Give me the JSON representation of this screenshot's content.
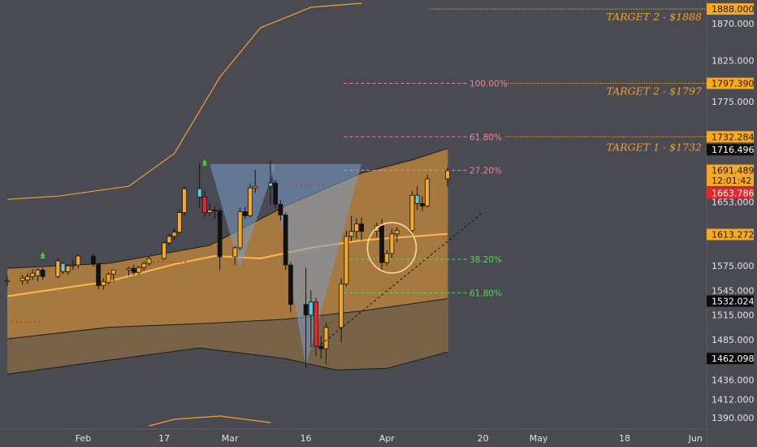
{
  "chart_data": {
    "type": "candlestick",
    "colors": {
      "background": "#4a4a52",
      "up": "#f7a825",
      "down": "#111111",
      "band": "#f0a030",
      "cyan": "#5dc8e0",
      "red": "#e8252b",
      "green": "#3fcf3f",
      "fib_upper": "#e7879a",
      "fib_lower": "#58d858",
      "triangle": "#7a9cc8"
    },
    "ylim": [
      1380,
      1895
    ],
    "date_axis": {
      "start": "2020-01-17",
      "ticks": [
        {
          "date": "2020-02-01",
          "label": "Feb"
        },
        {
          "date": "2020-02-17",
          "label": "17"
        },
        {
          "date": "2020-03-01",
          "label": "Mar"
        },
        {
          "date": "2020-03-16",
          "label": "16"
        },
        {
          "date": "2020-04-01",
          "label": "Apr"
        },
        {
          "date": "2020-04-20",
          "label": "20"
        },
        {
          "date": "2020-05-01",
          "label": "May"
        },
        {
          "date": "2020-05-18",
          "label": "18"
        },
        {
          "date": "2020-06-01",
          "label": "Jun"
        }
      ]
    },
    "price_ticks": [
      {
        "value": 1870,
        "label": "1870.000"
      },
      {
        "value": 1825,
        "label": "1825.000"
      },
      {
        "value": 1775,
        "label": "1775.000"
      },
      {
        "value": 1653,
        "label": "1653.000"
      },
      {
        "value": 1575,
        "label": "1575.000"
      },
      {
        "value": 1545,
        "label": "1545.000"
      },
      {
        "value": 1515,
        "label": "1515.000"
      },
      {
        "value": 1485,
        "label": "1485.000"
      },
      {
        "value": 1436,
        "label": "1436.000"
      },
      {
        "value": 1412,
        "label": "1412.000"
      },
      {
        "value": 1390,
        "label": "1390.000"
      }
    ],
    "price_labels": [
      {
        "value": 1888.0,
        "label": "1888.000",
        "style": "orange"
      },
      {
        "value": 1797.39,
        "label": "1797.390",
        "style": "orange"
      },
      {
        "value": 1732.284,
        "label": "1732.284",
        "style": "orange"
      },
      {
        "value": 1716.496,
        "label": "1716.496",
        "style": "black"
      },
      {
        "value": 1691.489,
        "label": "1691.489",
        "style": "orange"
      },
      {
        "value": 1679.0,
        "label": "12:01:42",
        "style": "orange"
      },
      {
        "value": 1663.786,
        "label": "1663.786",
        "style": "red"
      },
      {
        "value": 1613.272,
        "label": "1613.272",
        "style": "orange"
      },
      {
        "value": 1532.024,
        "label": "1532.024",
        "style": "black"
      },
      {
        "value": 1462.098,
        "label": "1462.098",
        "style": "black"
      }
    ],
    "targets": [
      {
        "value": 1888,
        "label": "TARGET 2 - $1888"
      },
      {
        "value": 1797.39,
        "label": "TARGET 2 - $1797"
      },
      {
        "value": 1732.284,
        "label": "TARGET 1 - $1732"
      }
    ],
    "fib_levels": [
      {
        "value": 1797.39,
        "label": "100.00%",
        "group": "upper"
      },
      {
        "value": 1732.284,
        "label": "61.80%",
        "group": "upper"
      },
      {
        "value": 1691.489,
        "label": "27.20%",
        "group": "upper"
      },
      {
        "value": 1583,
        "label": "38.20%",
        "group": "lower"
      },
      {
        "value": 1542,
        "label": "61.80%",
        "group": "lower"
      }
    ],
    "candles": [
      {
        "date": "2020-01-17",
        "open": 1556,
        "high": 1563,
        "low": 1550,
        "close": 1557
      },
      {
        "date": "2020-01-20",
        "open": 1557,
        "high": 1564,
        "low": 1552,
        "close": 1560
      },
      {
        "date": "2020-01-21",
        "open": 1558,
        "high": 1566,
        "low": 1553,
        "close": 1562
      },
      {
        "date": "2020-01-22",
        "open": 1562,
        "high": 1571,
        "low": 1558,
        "close": 1566
      },
      {
        "date": "2020-01-23",
        "open": 1563,
        "high": 1572,
        "low": 1556,
        "close": 1570
      },
      {
        "date": "2020-01-24",
        "open": 1570,
        "high": 1573,
        "low": 1558,
        "close": 1562
      },
      {
        "date": "2020-01-27",
        "open": 1562,
        "high": 1584,
        "low": 1560,
        "close": 1581
      },
      {
        "date": "2020-01-28",
        "open": 1578,
        "high": 1580,
        "low": 1565,
        "close": 1568
      },
      {
        "date": "2020-01-29",
        "open": 1568,
        "high": 1577,
        "low": 1564,
        "close": 1575
      },
      {
        "date": "2020-01-30",
        "open": 1575,
        "high": 1582,
        "low": 1570,
        "close": 1576
      },
      {
        "date": "2020-01-31",
        "open": 1576,
        "high": 1589,
        "low": 1572,
        "close": 1587
      },
      {
        "date": "2020-02-03",
        "open": 1587,
        "high": 1590,
        "low": 1574,
        "close": 1577
      },
      {
        "date": "2020-02-04",
        "open": 1577,
        "high": 1579,
        "low": 1546,
        "close": 1551
      },
      {
        "date": "2020-02-05",
        "open": 1551,
        "high": 1560,
        "low": 1546,
        "close": 1556
      },
      {
        "date": "2020-02-06",
        "open": 1555,
        "high": 1567,
        "low": 1552,
        "close": 1565
      },
      {
        "date": "2020-02-07",
        "open": 1565,
        "high": 1570,
        "low": 1556,
        "close": 1570
      },
      {
        "date": "2020-02-10",
        "open": 1570,
        "high": 1574,
        "low": 1563,
        "close": 1572
      },
      {
        "date": "2020-02-11",
        "open": 1572,
        "high": 1576,
        "low": 1564,
        "close": 1567
      },
      {
        "date": "2020-02-12",
        "open": 1567,
        "high": 1575,
        "low": 1564,
        "close": 1573
      },
      {
        "date": "2020-02-13",
        "open": 1573,
        "high": 1581,
        "low": 1569,
        "close": 1578
      },
      {
        "date": "2020-02-14",
        "open": 1578,
        "high": 1587,
        "low": 1575,
        "close": 1584
      },
      {
        "date": "2020-02-17",
        "open": 1584,
        "high": 1605,
        "low": 1582,
        "close": 1603
      },
      {
        "date": "2020-02-18",
        "open": 1603,
        "high": 1614,
        "low": 1600,
        "close": 1611
      },
      {
        "date": "2020-02-19",
        "open": 1611,
        "high": 1620,
        "low": 1606,
        "close": 1616
      },
      {
        "date": "2020-02-20",
        "open": 1616,
        "high": 1644,
        "low": 1614,
        "close": 1640
      },
      {
        "date": "2020-02-21",
        "open": 1640,
        "high": 1672,
        "low": 1636,
        "close": 1669
      },
      {
        "date": "2020-02-24",
        "open": 1669,
        "high": 1700,
        "low": 1645,
        "close": 1659
      },
      {
        "date": "2020-02-25",
        "open": 1659,
        "high": 1666,
        "low": 1634,
        "close": 1640
      },
      {
        "date": "2020-02-26",
        "open": 1640,
        "high": 1652,
        "low": 1636,
        "close": 1643
      },
      {
        "date": "2020-02-27",
        "open": 1643,
        "high": 1648,
        "low": 1632,
        "close": 1642
      },
      {
        "date": "2020-02-28",
        "open": 1642,
        "high": 1646,
        "low": 1570,
        "close": 1586
      },
      {
        "date": "2020-03-02",
        "open": 1586,
        "high": 1599,
        "low": 1576,
        "close": 1597
      },
      {
        "date": "2020-03-03",
        "open": 1597,
        "high": 1646,
        "low": 1594,
        "close": 1641
      },
      {
        "date": "2020-03-04",
        "open": 1641,
        "high": 1647,
        "low": 1632,
        "close": 1636
      },
      {
        "date": "2020-03-05",
        "open": 1636,
        "high": 1675,
        "low": 1634,
        "close": 1670
      },
      {
        "date": "2020-03-06",
        "open": 1670,
        "high": 1692,
        "low": 1664,
        "close": 1672
      },
      {
        "date": "2020-03-09",
        "open": 1672,
        "high": 1703,
        "low": 1650,
        "close": 1676
      },
      {
        "date": "2020-03-10",
        "open": 1676,
        "high": 1680,
        "low": 1645,
        "close": 1650
      },
      {
        "date": "2020-03-11",
        "open": 1650,
        "high": 1655,
        "low": 1630,
        "close": 1637
      },
      {
        "date": "2020-03-12",
        "open": 1637,
        "high": 1640,
        "low": 1570,
        "close": 1576
      },
      {
        "date": "2020-03-13",
        "open": 1576,
        "high": 1580,
        "low": 1518,
        "close": 1528
      },
      {
        "date": "2020-03-16",
        "open": 1528,
        "high": 1573,
        "low": 1451,
        "close": 1515
      },
      {
        "date": "2020-03-17",
        "open": 1515,
        "high": 1545,
        "low": 1476,
        "close": 1531
      },
      {
        "date": "2020-03-18",
        "open": 1531,
        "high": 1536,
        "low": 1465,
        "close": 1477
      },
      {
        "date": "2020-03-19",
        "open": 1477,
        "high": 1490,
        "low": 1462,
        "close": 1474
      },
      {
        "date": "2020-03-20",
        "open": 1474,
        "high": 1506,
        "low": 1455,
        "close": 1500
      },
      {
        "date": "2020-03-23",
        "open": 1500,
        "high": 1560,
        "low": 1482,
        "close": 1553
      },
      {
        "date": "2020-03-24",
        "open": 1553,
        "high": 1618,
        "low": 1550,
        "close": 1611
      },
      {
        "date": "2020-03-25",
        "open": 1611,
        "high": 1636,
        "low": 1605,
        "close": 1617
      },
      {
        "date": "2020-03-26",
        "open": 1617,
        "high": 1633,
        "low": 1608,
        "close": 1626
      },
      {
        "date": "2020-03-27",
        "open": 1626,
        "high": 1634,
        "low": 1606,
        "close": 1617
      },
      {
        "date": "2020-03-30",
        "open": 1617,
        "high": 1628,
        "low": 1610,
        "close": 1624
      },
      {
        "date": "2020-03-31",
        "open": 1624,
        "high": 1632,
        "low": 1570,
        "close": 1579
      },
      {
        "date": "2020-04-01",
        "open": 1579,
        "high": 1594,
        "low": 1575,
        "close": 1590
      },
      {
        "date": "2020-04-02",
        "open": 1590,
        "high": 1620,
        "low": 1585,
        "close": 1614
      },
      {
        "date": "2020-04-03",
        "open": 1614,
        "high": 1622,
        "low": 1604,
        "close": 1618
      },
      {
        "date": "2020-04-06",
        "open": 1618,
        "high": 1666,
        "low": 1612,
        "close": 1661
      },
      {
        "date": "2020-04-07",
        "open": 1661,
        "high": 1672,
        "low": 1643,
        "close": 1651
      },
      {
        "date": "2020-04-08",
        "open": 1651,
        "high": 1660,
        "low": 1642,
        "close": 1648
      },
      {
        "date": "2020-04-09",
        "open": 1648,
        "high": 1686,
        "low": 1646,
        "close": 1681
      },
      {
        "date": "2020-04-13",
        "open": 1681,
        "high": 1695,
        "low": 1672,
        "close": 1691
      }
    ],
    "bb_inner": {
      "start": "2020-01-17",
      "end": "2020-04-13",
      "upper": [
        [
          0,
          1572
        ],
        [
          20,
          1578
        ],
        [
          40,
          1600
        ],
        [
          55,
          1648
        ],
        [
          70,
          1688
        ],
        [
          80,
          1704
        ],
        [
          87,
          1718
        ]
      ],
      "lower": [
        [
          0,
          1486
        ],
        [
          20,
          1500
        ],
        [
          40,
          1505
        ],
        [
          55,
          1510
        ],
        [
          70,
          1520
        ],
        [
          87,
          1535
        ]
      ],
      "basis": [
        [
          0,
          1538
        ],
        [
          20,
          1556
        ],
        [
          33,
          1577
        ],
        [
          41,
          1587
        ],
        [
          50,
          1584
        ],
        [
          60,
          1597
        ],
        [
          70,
          1606
        ],
        [
          87,
          1614
        ]
      ]
    },
    "bb_outer": {
      "upper": [
        [
          0,
          1656
        ],
        [
          10,
          1660
        ],
        [
          24,
          1672
        ],
        [
          33,
          1712
        ],
        [
          42,
          1805
        ],
        [
          50,
          1865
        ],
        [
          60,
          1890
        ],
        [
          70,
          1895
        ]
      ],
      "lower_tail": [
        [
          28,
          1380
        ],
        [
          33,
          1388
        ],
        [
          42,
          1392
        ],
        [
          52,
          1384
        ]
      ],
      "lower": [
        [
          0,
          1443
        ],
        [
          20,
          1460
        ],
        [
          38,
          1475
        ],
        [
          55,
          1462
        ],
        [
          65,
          1448
        ],
        [
          75,
          1450
        ],
        [
          87,
          1470
        ]
      ]
    },
    "triangles": [
      [
        [
          "2020-02-26",
          1699
        ],
        [
          "2020-03-10",
          1699
        ],
        [
          "2020-03-03",
          1572
        ]
      ],
      [
        [
          "2020-03-09",
          1699
        ],
        [
          "2020-03-27",
          1699
        ],
        [
          "2020-03-16",
          1452
        ]
      ]
    ],
    "trendline": [
      [
        "2020-03-19",
        1479
      ],
      [
        "2020-04-20",
        1640
      ]
    ],
    "circle": {
      "date": "2020-04-02",
      "value": 1597
    },
    "red_dots": [
      {
        "from": "2020-01-17",
        "to": "2020-01-24",
        "value": 1507
      },
      {
        "from": "2020-02-14",
        "to": "2020-02-22",
        "value": 1580
      },
      {
        "from": "2020-03-14",
        "to": "2020-03-20",
        "value": 1674
      }
    ]
  }
}
